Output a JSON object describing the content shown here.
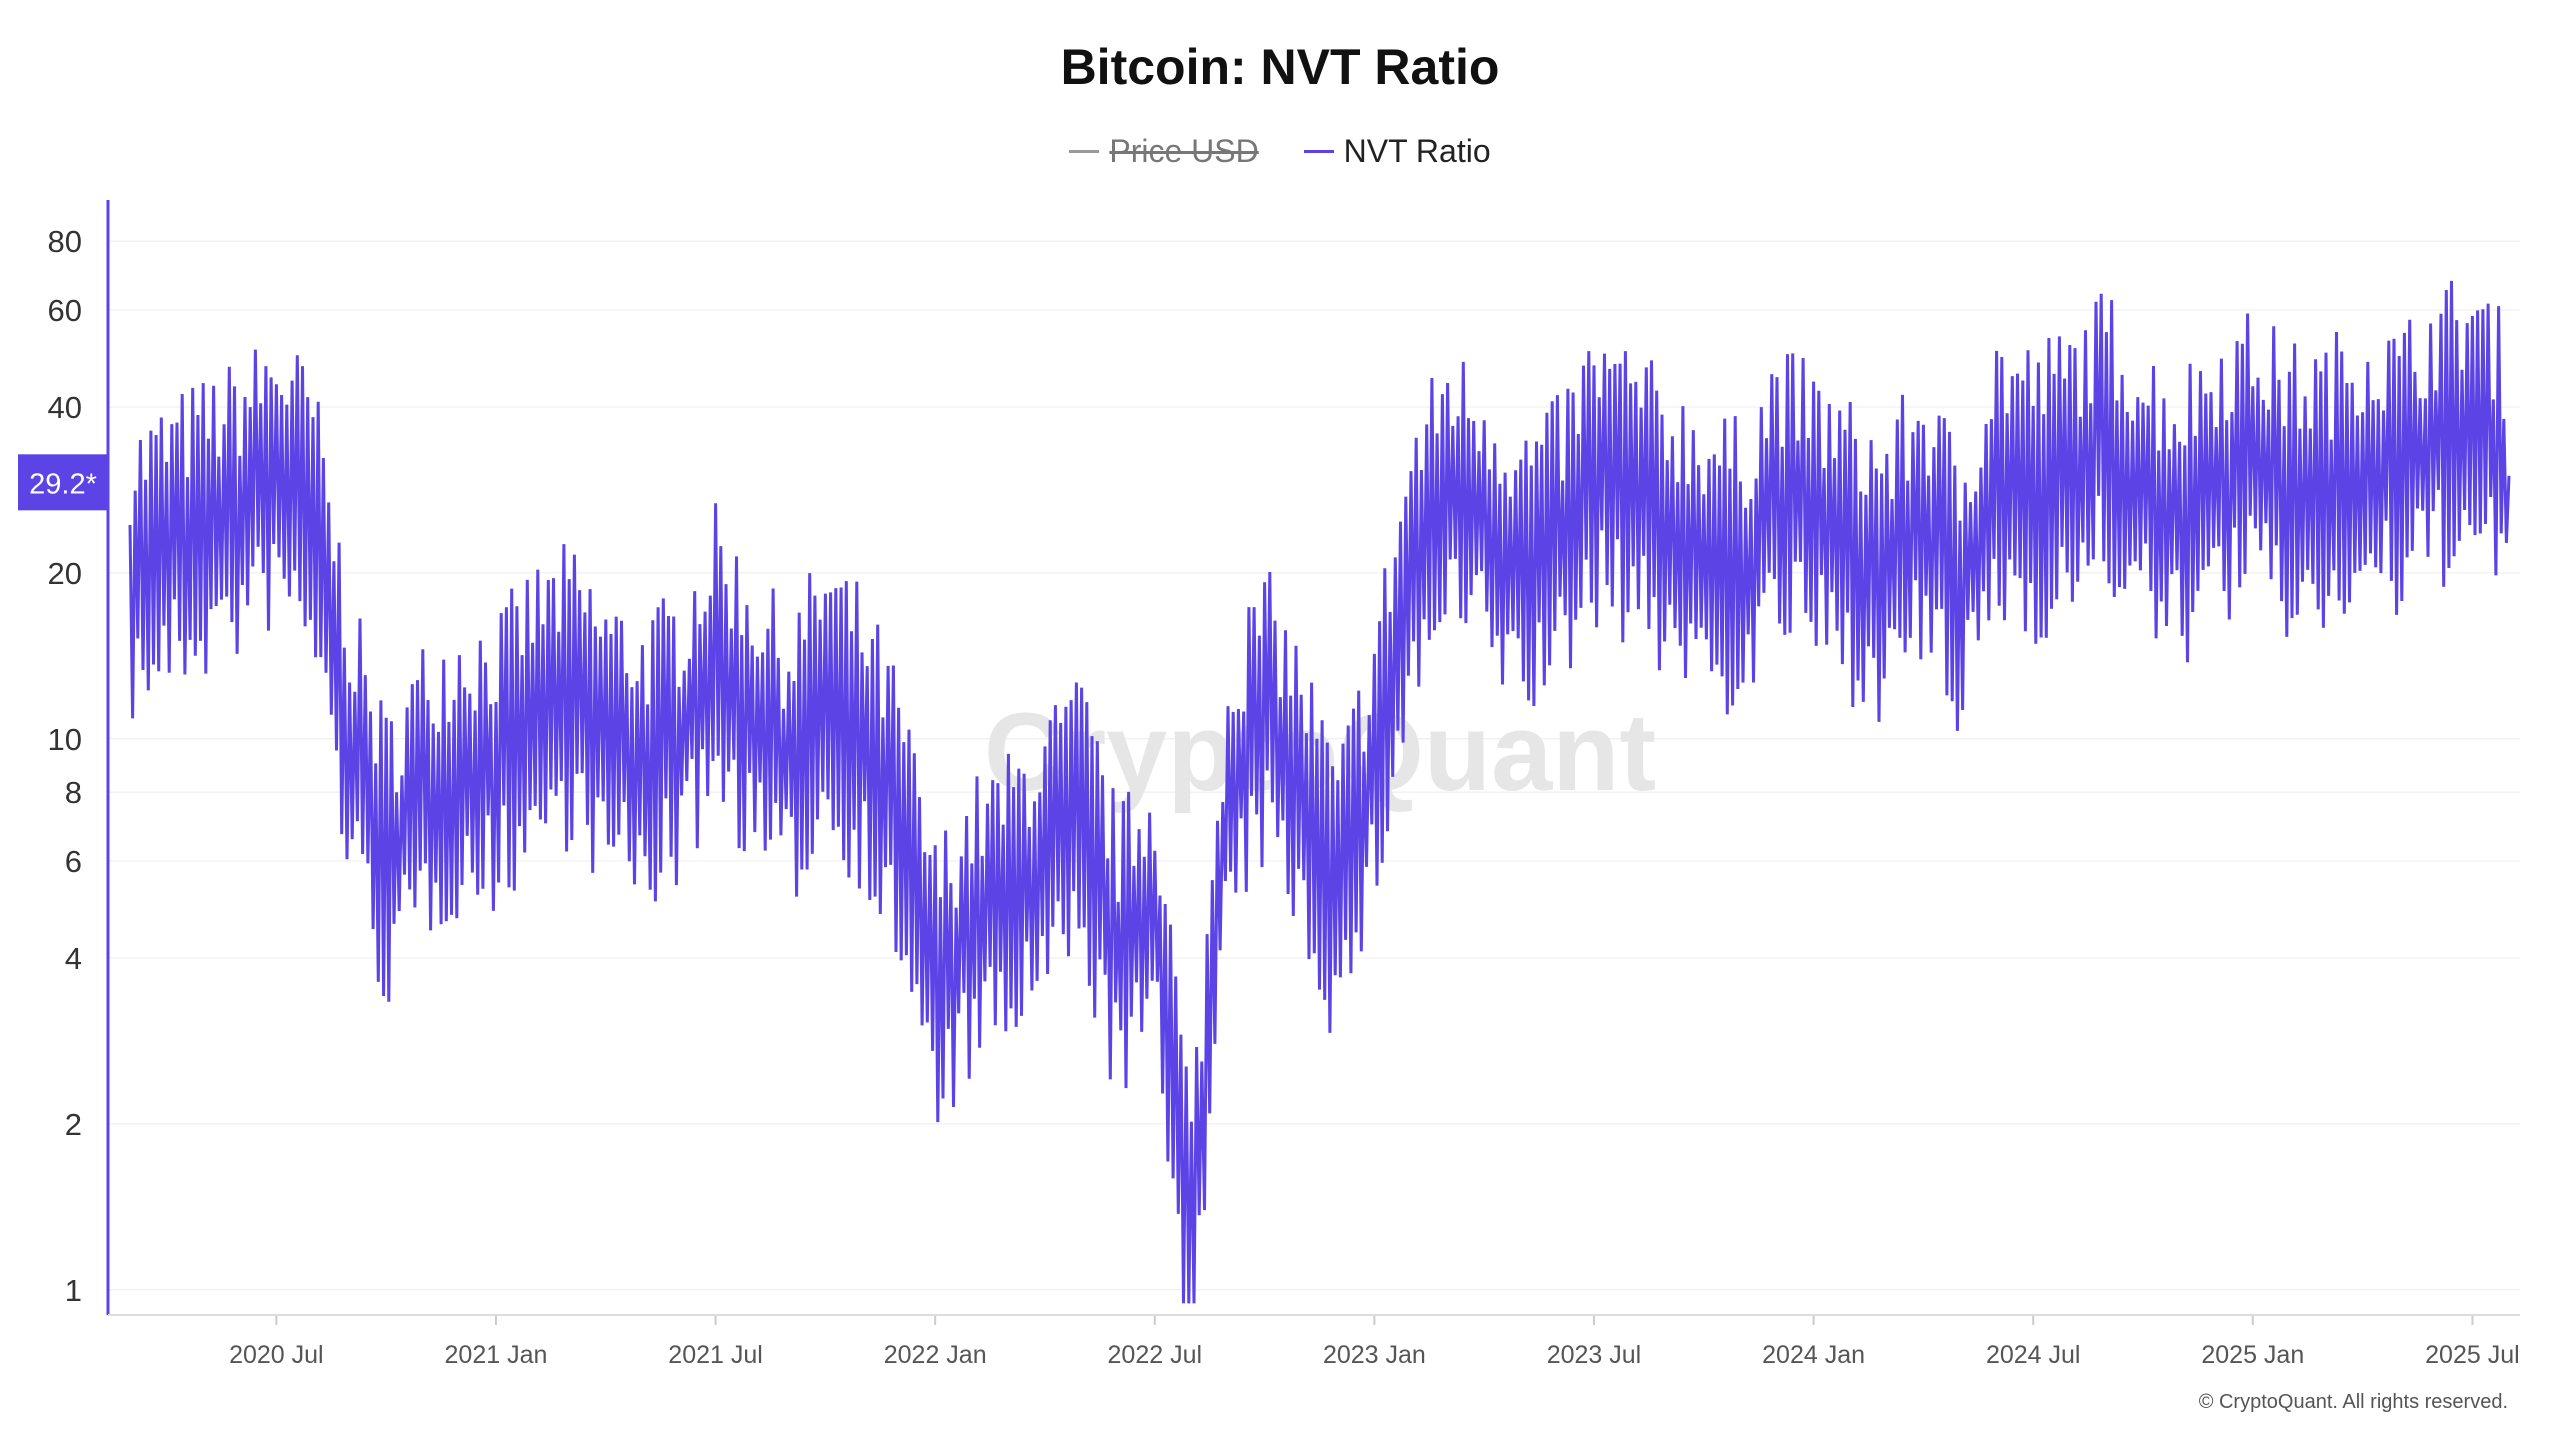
{
  "chart_data": {
    "type": "line",
    "title": "Bitcoin: NVT Ratio",
    "legend": [
      {
        "name": "Price USD",
        "color": "#9a9a9a",
        "hidden": true
      },
      {
        "name": "NVT Ratio",
        "color": "#5b43e6",
        "hidden": false
      }
    ],
    "y_scale": "log",
    "ylim": [
      0.9,
      95
    ],
    "y_ticks": [
      1,
      2,
      4,
      6,
      8,
      10,
      20,
      40,
      60,
      80
    ],
    "x_ticks": [
      "2020 Jul",
      "2021 Jan",
      "2021 Jul",
      "2022 Jan",
      "2022 Jul",
      "2023 Jan",
      "2023 Jul",
      "2024 Jan",
      "2024 Jul",
      "2025 Jan",
      "2025 Jul"
    ],
    "current_value_label": "29.2*",
    "watermark": "CryptoQuant",
    "copyright": "© CryptoQuant. All rights reserved.",
    "series": [
      {
        "name": "NVT Ratio",
        "color": "#5b43e6",
        "x": [
          "2020-03",
          "2020-04",
          "2020-05",
          "2020-06",
          "2020-07",
          "2020-08",
          "2020-09",
          "2020-10",
          "2020-11",
          "2020-12",
          "2021-01",
          "2021-02",
          "2021-03",
          "2021-04",
          "2021-05",
          "2021-06",
          "2021-07",
          "2021-08",
          "2021-09",
          "2021-10",
          "2021-11",
          "2021-12",
          "2022-01",
          "2022-02",
          "2022-03",
          "2022-04",
          "2022-05",
          "2022-06",
          "2022-07",
          "2022-08",
          "2022-09",
          "2022-10",
          "2022-11",
          "2022-12",
          "2023-01",
          "2023-02",
          "2023-03",
          "2023-04",
          "2023-05",
          "2023-06",
          "2023-07",
          "2023-08",
          "2023-09",
          "2023-10",
          "2023-11",
          "2023-12",
          "2024-01",
          "2024-02",
          "2024-03",
          "2024-04",
          "2024-05",
          "2024-06",
          "2024-07",
          "2024-08",
          "2024-09",
          "2024-10",
          "2024-11",
          "2024-12",
          "2025-01",
          "2025-02",
          "2025-03",
          "2025-04",
          "2025-05",
          "2025-06",
          "2025-07",
          "2025-08"
        ],
        "y": [
          20,
          22,
          24,
          26,
          30,
          25,
          10,
          6,
          8,
          9,
          9,
          11,
          12,
          10,
          9,
          10,
          14,
          11,
          9,
          12,
          10,
          7,
          3.5,
          4.5,
          5,
          6,
          7,
          4,
          5,
          1.2,
          8,
          11,
          8,
          5,
          9,
          20,
          28,
          25,
          20,
          22,
          30,
          28,
          24,
          22,
          20,
          28,
          25,
          22,
          20,
          25,
          18,
          30,
          28,
          30,
          35,
          28,
          25,
          30,
          32,
          28,
          28,
          32,
          30,
          35,
          38,
          30
        ]
      }
    ]
  }
}
